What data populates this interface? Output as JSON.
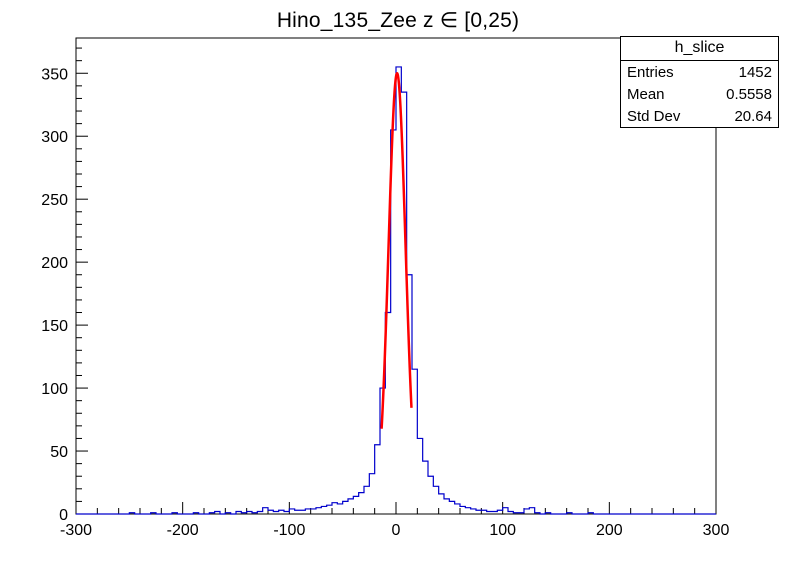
{
  "title": "Hino_135_Zee z  ∈ [0,25)",
  "stats_box": {
    "title": "h_slice",
    "rows": [
      {
        "label": "Entries",
        "value": "1452"
      },
      {
        "label": "Mean",
        "value": "0.5558"
      },
      {
        "label": "Std Dev",
        "value": "20.64"
      }
    ]
  },
  "colors": {
    "background": "#ffffff",
    "frame": "#000000",
    "histogram": "#0000cc",
    "fit": "#ff0000",
    "text": "#000000"
  },
  "chart_data": {
    "type": "bar",
    "subtype": "step-histogram",
    "title": "Hino_135_Zee z  ∈ [0,25)",
    "xlabel": "",
    "ylabel": "",
    "xlim": [
      -300,
      300
    ],
    "ylim": [
      0,
      378
    ],
    "grid": false,
    "legend": false,
    "x_major_tick_step": 100,
    "x_minor_tick_step": 20,
    "y_major_tick_step": 50,
    "y_minor_tick_step": 10,
    "x_tick_labels": [
      "-300",
      "-200",
      "-100",
      "0",
      "100",
      "200",
      "300"
    ],
    "y_tick_labels": [
      "0",
      "50",
      "100",
      "150",
      "200",
      "250",
      "300",
      "350"
    ],
    "bin_start": -300,
    "bin_width": 5,
    "counts": [
      0,
      0,
      0,
      0,
      0,
      0,
      0,
      0,
      0,
      0,
      1,
      0,
      0,
      0,
      1,
      0,
      0,
      0,
      1,
      0,
      0,
      0,
      1,
      0,
      0,
      1,
      2,
      0,
      1,
      0,
      2,
      1,
      2,
      1,
      2,
      5,
      3,
      2,
      3,
      2,
      4,
      3,
      3,
      4,
      4,
      5,
      6,
      7,
      9,
      8,
      10,
      12,
      14,
      17,
      22,
      32,
      55,
      100,
      160,
      305,
      355,
      335,
      190,
      115,
      60,
      42,
      30,
      22,
      16,
      12,
      10,
      8,
      6,
      5,
      4,
      3,
      3,
      2,
      2,
      3,
      5,
      2,
      1,
      1,
      4,
      5,
      1,
      0,
      1,
      0,
      0,
      0,
      1,
      0,
      0,
      0,
      1,
      0,
      0,
      0,
      0,
      0,
      0,
      0,
      0,
      0,
      0,
      0,
      0,
      0,
      0,
      0,
      0,
      0,
      0,
      0,
      0,
      0,
      0,
      0
    ],
    "fit": {
      "type": "gaussian",
      "amplitude": 350,
      "mean": 1,
      "sigma": 8,
      "range": [
        -13.5,
        14.5
      ]
    }
  }
}
